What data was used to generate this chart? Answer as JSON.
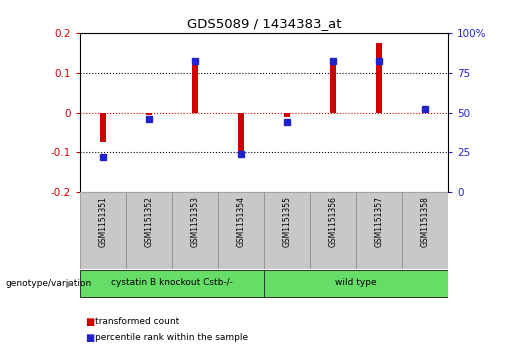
{
  "title": "GDS5089 / 1434383_at",
  "samples": [
    "GSM1151351",
    "GSM1151352",
    "GSM1151353",
    "GSM1151354",
    "GSM1151355",
    "GSM1151356",
    "GSM1151357",
    "GSM1151358"
  ],
  "red_values": [
    -0.075,
    -0.005,
    0.12,
    -0.105,
    -0.01,
    0.12,
    0.175,
    0.005
  ],
  "blue_values": [
    22,
    46,
    82,
    24,
    44,
    82,
    82,
    52
  ],
  "ylim_left": [
    -0.2,
    0.2
  ],
  "ylim_right": [
    0,
    100
  ],
  "yticks_left": [
    -0.2,
    -0.1,
    0.0,
    0.1,
    0.2
  ],
  "yticks_right": [
    0,
    25,
    50,
    75,
    100
  ],
  "ytick_labels_left": [
    "-0.2",
    "-0.1",
    "0",
    "0.1",
    "0.2"
  ],
  "ytick_labels_right": [
    "0",
    "25",
    "50",
    "75",
    "100%"
  ],
  "group1_label": "cystatin B knockout Cstb-/-",
  "group2_label": "wild type",
  "group_color": "#66dd66",
  "group_row_label": "genotype/variation",
  "legend_red": "transformed count",
  "legend_blue": "percentile rank within the sample",
  "red_color": "#cc0000",
  "blue_color": "#2222cc",
  "hline_color": "#cc0000",
  "sample_box_color": "#c8c8c8",
  "bar_width": 0.12
}
